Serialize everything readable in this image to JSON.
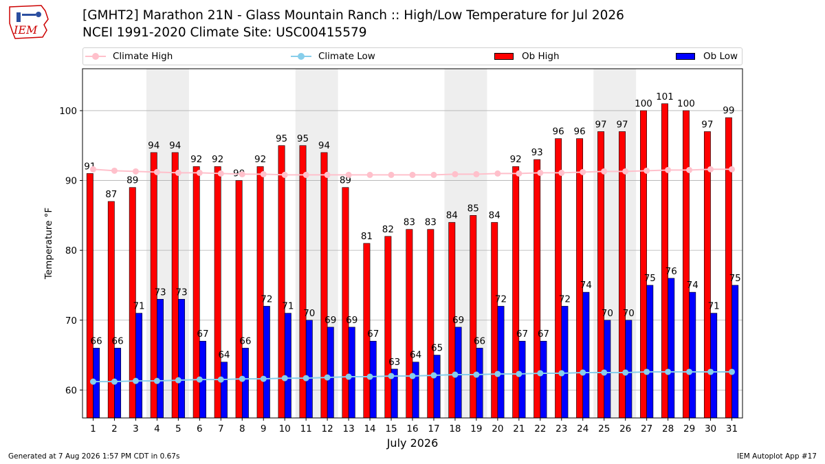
{
  "logo": {
    "text": "IEM"
  },
  "title_line1": "[GMHT2] Marathon 21N - Glass Mountain Ranch :: High/Low Temperature for Jul 2026",
  "title_line2": "NCEI 1991-2020 Climate Site: USC00415579",
  "footer_left": "Generated at 7 Aug 2026 1:57 PM CDT in 0.67s",
  "footer_right": "IEM Autoplot App #17",
  "colors": {
    "ob_high": "#ff0000",
    "ob_low": "#0000ff",
    "climate_high": "#ffc0cb",
    "climate_low": "#87ceeb",
    "weekend_shade": "#eeeeee"
  },
  "chart_data": {
    "type": "bar",
    "xlabel": "July 2026",
    "ylabel": "Temperature °F",
    "ylim": [
      56,
      106
    ],
    "yticks": [
      60,
      70,
      80,
      90,
      100
    ],
    "grid": "horizontal",
    "legend_position": "top",
    "days": [
      1,
      2,
      3,
      4,
      5,
      6,
      7,
      8,
      9,
      10,
      11,
      12,
      13,
      14,
      15,
      16,
      17,
      18,
      19,
      20,
      21,
      22,
      23,
      24,
      25,
      26,
      27,
      28,
      29,
      30,
      31
    ],
    "shaded_days": [
      [
        4,
        5
      ],
      [
        11,
        12
      ],
      [
        18,
        19
      ],
      [
        25,
        26
      ]
    ],
    "series": [
      {
        "name": "Ob High",
        "kind": "bar",
        "values": [
          91,
          87,
          89,
          94,
          94,
          92,
          92,
          90,
          92,
          95,
          95,
          94,
          89,
          81,
          82,
          83,
          83,
          84,
          85,
          84,
          92,
          93,
          96,
          96,
          97,
          97,
          100,
          101,
          100,
          97,
          99
        ]
      },
      {
        "name": "Ob Low",
        "kind": "bar",
        "values": [
          66,
          66,
          71,
          73,
          73,
          67,
          64,
          66,
          72,
          71,
          70,
          69,
          69,
          67,
          63,
          64,
          65,
          69,
          66,
          72,
          67,
          67,
          72,
          74,
          70,
          70,
          75,
          76,
          74,
          71,
          75
        ]
      },
      {
        "name": "Climate High",
        "kind": "line",
        "values": [
          91.6,
          91.4,
          91.3,
          91.2,
          91.1,
          91.1,
          91.0,
          90.9,
          90.9,
          90.8,
          90.8,
          90.8,
          90.8,
          90.8,
          90.8,
          90.8,
          90.8,
          90.9,
          90.9,
          91.0,
          91.0,
          91.1,
          91.1,
          91.2,
          91.3,
          91.3,
          91.4,
          91.5,
          91.5,
          91.6,
          91.6
        ]
      },
      {
        "name": "Climate Low",
        "kind": "line",
        "values": [
          61.2,
          61.2,
          61.3,
          61.3,
          61.4,
          61.5,
          61.5,
          61.6,
          61.6,
          61.7,
          61.7,
          61.8,
          61.9,
          61.9,
          62.0,
          62.0,
          62.1,
          62.2,
          62.2,
          62.3,
          62.3,
          62.4,
          62.4,
          62.5,
          62.5,
          62.5,
          62.6,
          62.6,
          62.6,
          62.6,
          62.6
        ]
      }
    ]
  }
}
